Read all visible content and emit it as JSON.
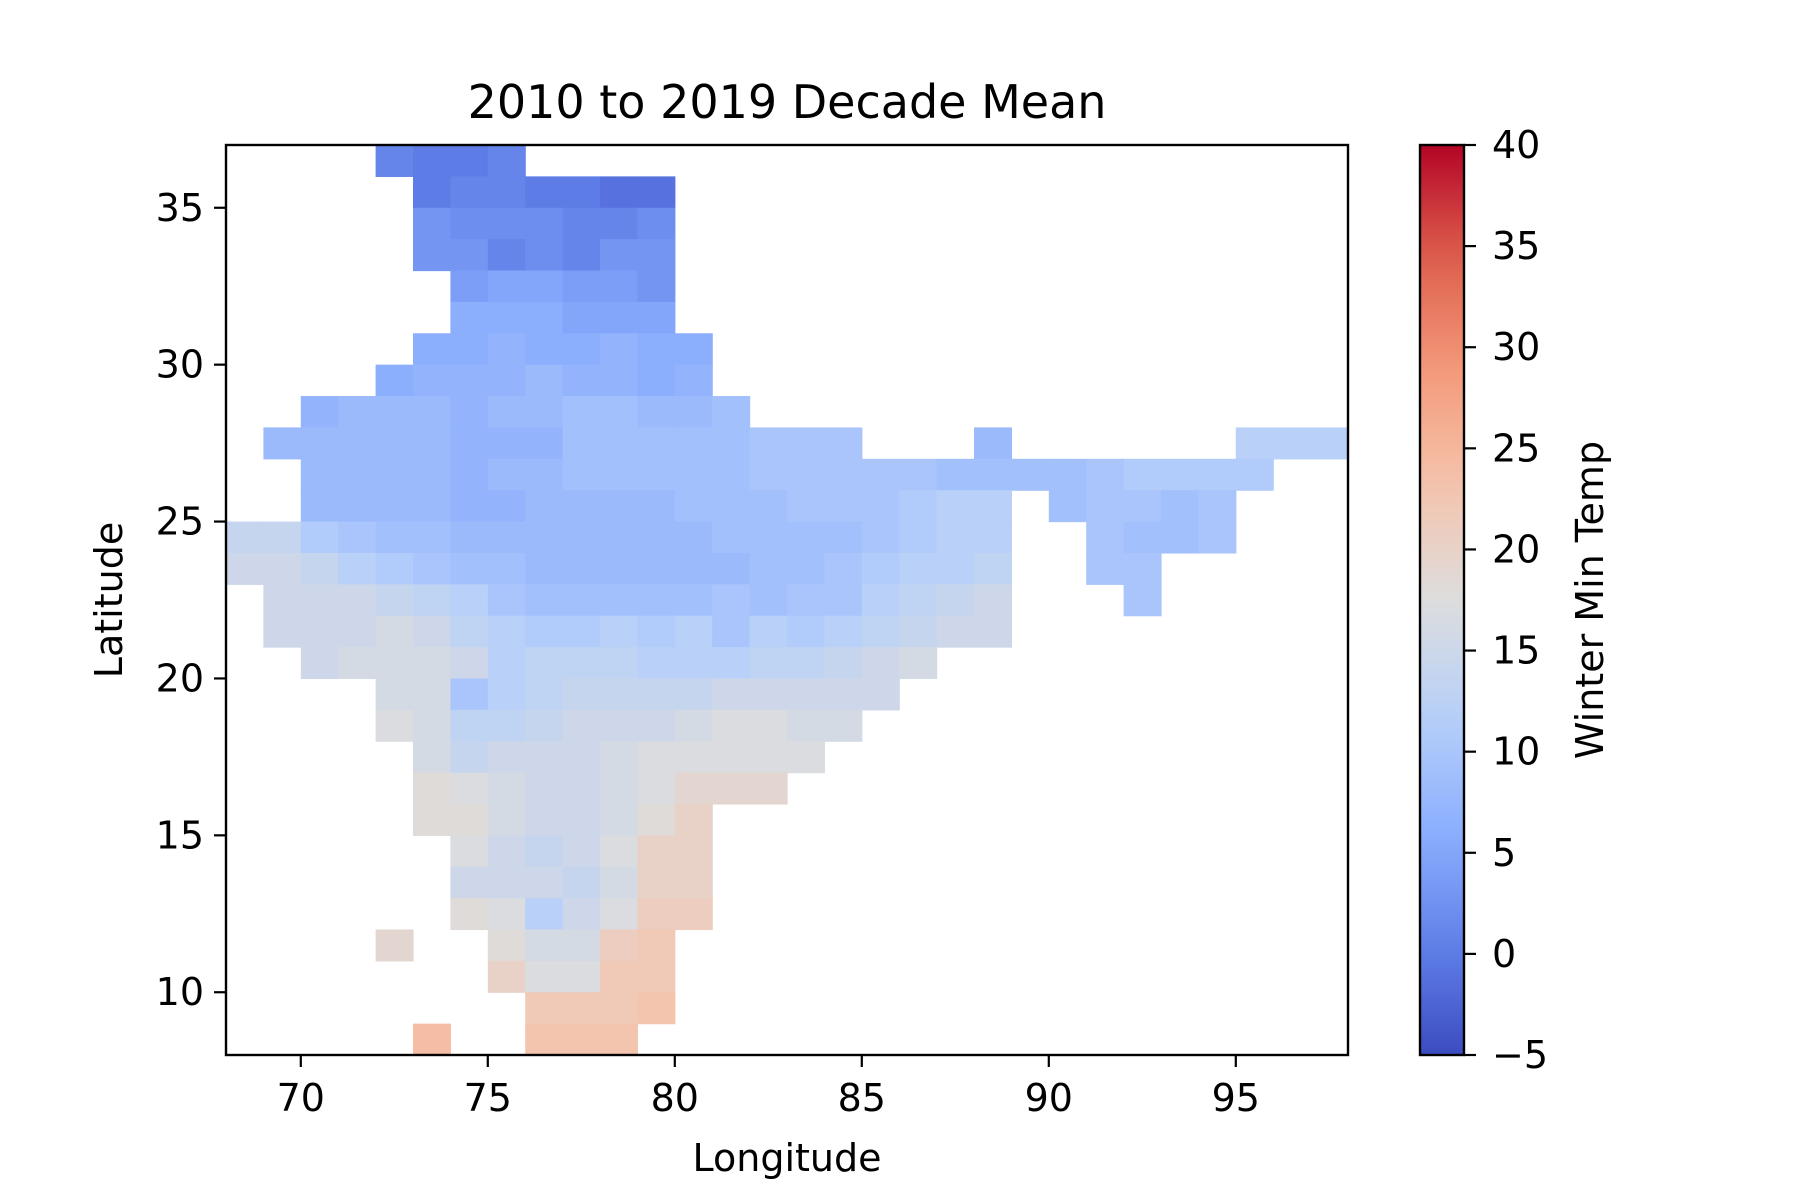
{
  "chart_data": {
    "type": "heatmap",
    "title": "2010 to 2019 Decade Mean",
    "xlabel": "Longitude",
    "ylabel": "Latitude",
    "xlim": [
      68,
      98
    ],
    "ylim": [
      8,
      37
    ],
    "xticks": [
      70,
      75,
      80,
      85,
      90,
      95
    ],
    "yticks": [
      10,
      15,
      20,
      25,
      30,
      35
    ],
    "colorbar": {
      "label": "Winter Min Temp",
      "vmin": -5,
      "vmax": 40,
      "ticks": [
        -5,
        0,
        5,
        10,
        15,
        20,
        25,
        30,
        35,
        40
      ],
      "tick_labels": [
        "−5",
        "0",
        "5",
        "10",
        "15",
        "20",
        "25",
        "30",
        "35",
        "40"
      ],
      "colormap": "coolwarm"
    },
    "grid": false,
    "cell_size_deg": 1,
    "cells": [
      [
        72,
        36,
        1
      ],
      [
        73,
        36,
        0
      ],
      [
        74,
        36,
        0
      ],
      [
        75,
        36,
        1
      ],
      [
        73,
        35,
        0
      ],
      [
        74,
        35,
        1
      ],
      [
        75,
        35,
        1
      ],
      [
        76,
        35,
        0
      ],
      [
        77,
        35,
        0
      ],
      [
        78,
        35,
        -1
      ],
      [
        79,
        35,
        -1
      ],
      [
        73,
        34,
        3
      ],
      [
        74,
        34,
        2
      ],
      [
        75,
        34,
        2
      ],
      [
        76,
        34,
        2
      ],
      [
        77,
        34,
        1
      ],
      [
        78,
        34,
        1
      ],
      [
        79,
        34,
        2
      ],
      [
        73,
        33,
        3
      ],
      [
        74,
        33,
        3
      ],
      [
        75,
        33,
        1
      ],
      [
        76,
        33,
        2
      ],
      [
        77,
        33,
        1
      ],
      [
        78,
        33,
        3
      ],
      [
        79,
        33,
        3
      ],
      [
        74,
        32,
        4
      ],
      [
        75,
        32,
        5
      ],
      [
        76,
        32,
        5
      ],
      [
        77,
        32,
        4
      ],
      [
        78,
        32,
        4
      ],
      [
        79,
        32,
        3
      ],
      [
        74,
        31,
        6
      ],
      [
        75,
        31,
        6
      ],
      [
        76,
        31,
        6
      ],
      [
        77,
        31,
        5
      ],
      [
        78,
        31,
        5
      ],
      [
        79,
        31,
        5
      ],
      [
        73,
        30,
        6
      ],
      [
        74,
        30,
        6
      ],
      [
        75,
        30,
        7
      ],
      [
        76,
        30,
        6
      ],
      [
        77,
        30,
        6
      ],
      [
        78,
        30,
        7
      ],
      [
        79,
        30,
        6
      ],
      [
        80,
        30,
        6
      ],
      [
        72,
        29,
        6
      ],
      [
        73,
        29,
        7
      ],
      [
        74,
        29,
        7
      ],
      [
        75,
        29,
        7
      ],
      [
        76,
        29,
        8
      ],
      [
        77,
        29,
        7
      ],
      [
        78,
        29,
        7
      ],
      [
        79,
        29,
        6
      ],
      [
        80,
        29,
        7
      ],
      [
        70,
        28,
        7
      ],
      [
        71,
        28,
        8
      ],
      [
        72,
        28,
        8
      ],
      [
        73,
        28,
        8
      ],
      [
        74,
        28,
        7
      ],
      [
        75,
        28,
        8
      ],
      [
        76,
        28,
        8
      ],
      [
        77,
        28,
        9
      ],
      [
        78,
        28,
        9
      ],
      [
        79,
        28,
        8
      ],
      [
        80,
        28,
        8
      ],
      [
        81,
        28,
        9
      ],
      [
        69,
        27,
        8
      ],
      [
        70,
        27,
        8
      ],
      [
        71,
        27,
        8
      ],
      [
        72,
        27,
        8
      ],
      [
        73,
        27,
        8
      ],
      [
        74,
        27,
        7
      ],
      [
        75,
        27,
        7
      ],
      [
        76,
        27,
        7
      ],
      [
        77,
        27,
        9
      ],
      [
        78,
        27,
        9
      ],
      [
        79,
        27,
        9
      ],
      [
        80,
        27,
        9
      ],
      [
        81,
        27,
        9
      ],
      [
        82,
        27,
        10
      ],
      [
        83,
        27,
        10
      ],
      [
        84,
        27,
        10
      ],
      [
        88,
        27,
        8
      ],
      [
        95,
        27,
        12
      ],
      [
        96,
        27,
        12
      ],
      [
        97,
        27,
        12
      ],
      [
        70,
        26,
        8
      ],
      [
        71,
        26,
        8
      ],
      [
        72,
        26,
        8
      ],
      [
        73,
        26,
        8
      ],
      [
        74,
        26,
        7
      ],
      [
        75,
        26,
        8
      ],
      [
        76,
        26,
        8
      ],
      [
        77,
        26,
        9
      ],
      [
        78,
        26,
        9
      ],
      [
        79,
        26,
        9
      ],
      [
        80,
        26,
        9
      ],
      [
        81,
        26,
        9
      ],
      [
        82,
        26,
        10
      ],
      [
        83,
        26,
        10
      ],
      [
        84,
        26,
        10
      ],
      [
        85,
        26,
        10
      ],
      [
        86,
        26,
        10
      ],
      [
        87,
        26,
        9
      ],
      [
        88,
        26,
        9
      ],
      [
        89,
        26,
        9
      ],
      [
        90,
        26,
        9
      ],
      [
        91,
        26,
        10
      ],
      [
        92,
        26,
        11
      ],
      [
        93,
        26,
        11
      ],
      [
        94,
        26,
        11
      ],
      [
        95,
        26,
        11
      ],
      [
        70,
        25,
        8
      ],
      [
        71,
        25,
        8
      ],
      [
        72,
        25,
        8
      ],
      [
        73,
        25,
        8
      ],
      [
        74,
        25,
        7
      ],
      [
        75,
        25,
        7
      ],
      [
        76,
        25,
        8
      ],
      [
        77,
        25,
        8
      ],
      [
        78,
        25,
        8
      ],
      [
        79,
        25,
        8
      ],
      [
        80,
        25,
        9
      ],
      [
        81,
        25,
        9
      ],
      [
        82,
        25,
        9
      ],
      [
        83,
        25,
        10
      ],
      [
        84,
        25,
        10
      ],
      [
        85,
        25,
        10
      ],
      [
        86,
        25,
        11
      ],
      [
        87,
        25,
        12
      ],
      [
        88,
        25,
        12
      ],
      [
        90,
        25,
        9
      ],
      [
        91,
        25,
        10
      ],
      [
        92,
        25,
        10
      ],
      [
        93,
        25,
        9
      ],
      [
        94,
        25,
        10
      ],
      [
        68,
        24,
        14
      ],
      [
        69,
        24,
        14
      ],
      [
        70,
        24,
        11
      ],
      [
        71,
        24,
        10
      ],
      [
        72,
        24,
        9
      ],
      [
        73,
        24,
        9
      ],
      [
        74,
        24,
        8
      ],
      [
        75,
        24,
        8
      ],
      [
        76,
        24,
        8
      ],
      [
        77,
        24,
        8
      ],
      [
        78,
        24,
        8
      ],
      [
        79,
        24,
        8
      ],
      [
        80,
        24,
        8
      ],
      [
        81,
        24,
        9
      ],
      [
        82,
        24,
        9
      ],
      [
        83,
        24,
        9
      ],
      [
        84,
        24,
        9
      ],
      [
        85,
        24,
        10
      ],
      [
        86,
        24,
        11
      ],
      [
        87,
        24,
        12
      ],
      [
        88,
        24,
        12
      ],
      [
        91,
        24,
        10
      ],
      [
        92,
        24,
        9
      ],
      [
        93,
        24,
        9
      ],
      [
        94,
        24,
        10
      ],
      [
        68,
        23,
        15
      ],
      [
        69,
        23,
        15
      ],
      [
        70,
        23,
        14
      ],
      [
        71,
        23,
        12
      ],
      [
        72,
        23,
        11
      ],
      [
        73,
        23,
        10
      ],
      [
        74,
        23,
        9
      ],
      [
        75,
        23,
        9
      ],
      [
        76,
        23,
        8
      ],
      [
        77,
        23,
        8
      ],
      [
        78,
        23,
        8
      ],
      [
        79,
        23,
        8
      ],
      [
        80,
        23,
        8
      ],
      [
        81,
        23,
        8
      ],
      [
        82,
        23,
        9
      ],
      [
        83,
        23,
        9
      ],
      [
        84,
        23,
        10
      ],
      [
        85,
        23,
        11
      ],
      [
        86,
        23,
        12
      ],
      [
        87,
        23,
        12
      ],
      [
        88,
        23,
        13
      ],
      [
        91,
        23,
        10
      ],
      [
        92,
        23,
        10
      ],
      [
        69,
        22,
        15
      ],
      [
        70,
        22,
        15
      ],
      [
        71,
        22,
        15
      ],
      [
        72,
        22,
        14
      ],
      [
        73,
        22,
        13
      ],
      [
        74,
        22,
        12
      ],
      [
        75,
        22,
        10
      ],
      [
        76,
        22,
        9
      ],
      [
        77,
        22,
        9
      ],
      [
        78,
        22,
        9
      ],
      [
        79,
        22,
        9
      ],
      [
        80,
        22,
        9
      ],
      [
        81,
        22,
        10
      ],
      [
        82,
        22,
        9
      ],
      [
        83,
        22,
        10
      ],
      [
        84,
        22,
        10
      ],
      [
        85,
        22,
        12
      ],
      [
        86,
        22,
        13
      ],
      [
        87,
        22,
        14
      ],
      [
        88,
        22,
        15
      ],
      [
        92,
        22,
        10
      ],
      [
        69,
        21,
        15
      ],
      [
        70,
        21,
        15
      ],
      [
        71,
        21,
        15
      ],
      [
        72,
        21,
        16
      ],
      [
        73,
        21,
        15
      ],
      [
        74,
        21,
        13
      ],
      [
        75,
        21,
        12
      ],
      [
        76,
        21,
        11
      ],
      [
        77,
        21,
        11
      ],
      [
        78,
        21,
        12
      ],
      [
        79,
        21,
        11
      ],
      [
        80,
        21,
        12
      ],
      [
        81,
        21,
        10
      ],
      [
        82,
        21,
        12
      ],
      [
        83,
        21,
        11
      ],
      [
        84,
        21,
        12
      ],
      [
        85,
        21,
        13
      ],
      [
        86,
        21,
        14
      ],
      [
        87,
        21,
        15
      ],
      [
        88,
        21,
        15
      ],
      [
        70,
        20,
        15
      ],
      [
        71,
        20,
        16
      ],
      [
        72,
        20,
        16
      ],
      [
        73,
        20,
        16
      ],
      [
        74,
        20,
        15
      ],
      [
        75,
        20,
        12
      ],
      [
        76,
        20,
        13
      ],
      [
        77,
        20,
        13
      ],
      [
        78,
        20,
        13
      ],
      [
        79,
        20,
        12
      ],
      [
        80,
        20,
        12
      ],
      [
        81,
        20,
        12
      ],
      [
        82,
        20,
        13
      ],
      [
        83,
        20,
        13
      ],
      [
        84,
        20,
        14
      ],
      [
        85,
        20,
        15
      ],
      [
        86,
        20,
        16
      ],
      [
        72,
        19,
        16
      ],
      [
        73,
        19,
        16
      ],
      [
        74,
        19,
        10
      ],
      [
        75,
        19,
        12
      ],
      [
        76,
        19,
        13
      ],
      [
        77,
        19,
        14
      ],
      [
        78,
        19,
        14
      ],
      [
        79,
        19,
        14
      ],
      [
        80,
        19,
        14
      ],
      [
        81,
        19,
        15
      ],
      [
        82,
        19,
        15
      ],
      [
        83,
        19,
        15
      ],
      [
        84,
        19,
        15
      ],
      [
        85,
        19,
        15
      ],
      [
        72,
        18,
        17
      ],
      [
        73,
        18,
        16
      ],
      [
        74,
        18,
        13
      ],
      [
        75,
        18,
        13
      ],
      [
        76,
        18,
        14
      ],
      [
        77,
        18,
        15
      ],
      [
        78,
        18,
        15
      ],
      [
        79,
        18,
        15
      ],
      [
        80,
        18,
        16
      ],
      [
        81,
        18,
        17
      ],
      [
        82,
        18,
        17
      ],
      [
        83,
        18,
        16
      ],
      [
        84,
        18,
        16
      ],
      [
        73,
        17,
        16
      ],
      [
        74,
        17,
        14
      ],
      [
        75,
        17,
        15
      ],
      [
        76,
        17,
        15
      ],
      [
        77,
        17,
        15
      ],
      [
        78,
        17,
        16
      ],
      [
        79,
        17,
        17
      ],
      [
        80,
        17,
        17
      ],
      [
        81,
        17,
        17
      ],
      [
        82,
        17,
        17
      ],
      [
        83,
        17,
        17
      ],
      [
        73,
        16,
        18
      ],
      [
        74,
        16,
        17
      ],
      [
        75,
        16,
        16
      ],
      [
        76,
        16,
        15
      ],
      [
        77,
        16,
        15
      ],
      [
        78,
        16,
        16
      ],
      [
        79,
        16,
        17
      ],
      [
        80,
        16,
        19
      ],
      [
        81,
        16,
        19
      ],
      [
        82,
        16,
        19
      ],
      [
        73,
        15,
        18
      ],
      [
        74,
        15,
        18
      ],
      [
        75,
        15,
        16
      ],
      [
        76,
        15,
        15
      ],
      [
        77,
        15,
        15
      ],
      [
        78,
        15,
        16
      ],
      [
        79,
        15,
        18
      ],
      [
        80,
        15,
        20
      ],
      [
        74,
        14,
        17
      ],
      [
        75,
        14,
        15
      ],
      [
        76,
        14,
        14
      ],
      [
        77,
        14,
        15
      ],
      [
        78,
        14,
        17
      ],
      [
        79,
        14,
        20
      ],
      [
        80,
        14,
        20
      ],
      [
        74,
        13,
        15
      ],
      [
        75,
        13,
        15
      ],
      [
        76,
        13,
        15
      ],
      [
        77,
        13,
        14
      ],
      [
        78,
        13,
        16
      ],
      [
        79,
        13,
        20
      ],
      [
        80,
        13,
        20
      ],
      [
        74,
        12,
        18
      ],
      [
        75,
        12,
        17
      ],
      [
        76,
        12,
        12
      ],
      [
        77,
        12,
        15
      ],
      [
        78,
        12,
        17
      ],
      [
        79,
        12,
        21
      ],
      [
        80,
        12,
        21
      ],
      [
        72,
        11,
        19
      ],
      [
        75,
        11,
        18
      ],
      [
        76,
        11,
        16
      ],
      [
        77,
        11,
        16
      ],
      [
        78,
        11,
        21
      ],
      [
        79,
        11,
        22
      ],
      [
        75,
        10,
        20
      ],
      [
        76,
        10,
        17
      ],
      [
        77,
        10,
        17
      ],
      [
        78,
        10,
        22
      ],
      [
        79,
        10,
        22
      ],
      [
        76,
        9,
        22
      ],
      [
        77,
        9,
        22
      ],
      [
        78,
        9,
        22
      ],
      [
        79,
        9,
        23
      ],
      [
        73,
        8,
        24
      ],
      [
        76,
        8,
        23
      ],
      [
        77,
        8,
        23
      ],
      [
        78,
        8,
        23
      ]
    ]
  }
}
